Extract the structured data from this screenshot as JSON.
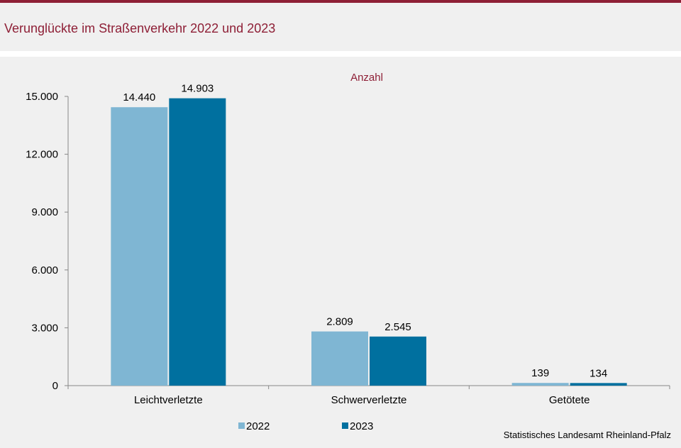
{
  "title": "Verunglückte im Straßenverkehr 2022 und 2023",
  "source": "Statistisches Landesamt  Rheinland-Pfalz",
  "colors": {
    "accent": "#8e1f36",
    "series_2022": "#7fb6d3",
    "series_2023": "#00709f"
  },
  "chart_data": {
    "type": "bar",
    "title": "",
    "unit_label": "Anzahl",
    "xlabel": "",
    "ylabel": "",
    "categories": [
      "Leichtverletzte",
      "Schwerverletzte",
      "Getötete"
    ],
    "series": [
      {
        "name": "2022",
        "values": [
          14440,
          2809,
          139
        ],
        "labels": [
          "14.440",
          "2.809",
          "139"
        ]
      },
      {
        "name": "2023",
        "values": [
          14903,
          2545,
          134
        ],
        "labels": [
          "14.903",
          "2.545",
          "134"
        ]
      }
    ],
    "yticks": [
      0,
      3000,
      6000,
      9000,
      12000,
      15000
    ],
    "ytick_labels": [
      "0",
      "3.000",
      "6.000",
      "9.000",
      "12.000",
      "15.000"
    ],
    "ylim": [
      0,
      15000
    ],
    "grid": false,
    "legend_position": "bottom-center"
  }
}
